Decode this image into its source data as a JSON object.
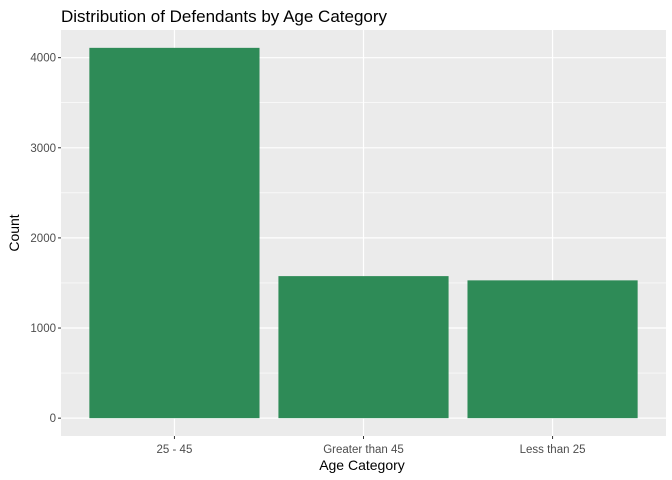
{
  "chart_data": {
    "type": "bar",
    "title": "Distribution of Defendants by Age Category",
    "xlabel": "Age Category",
    "ylabel": "Count",
    "categories": [
      "25 - 45",
      "Greater than 45",
      "Less than 25"
    ],
    "values": [
      4109,
      1576,
      1529
    ],
    "ylim": [
      -198,
      4307
    ],
    "yticks": [
      0,
      1000,
      2000,
      3000,
      4000
    ],
    "grid": true,
    "legend": "none",
    "colors": {
      "bar": "#2e8b57",
      "panel": "#ebebeb",
      "grid": "#ffffff",
      "tick": "#333333"
    }
  }
}
